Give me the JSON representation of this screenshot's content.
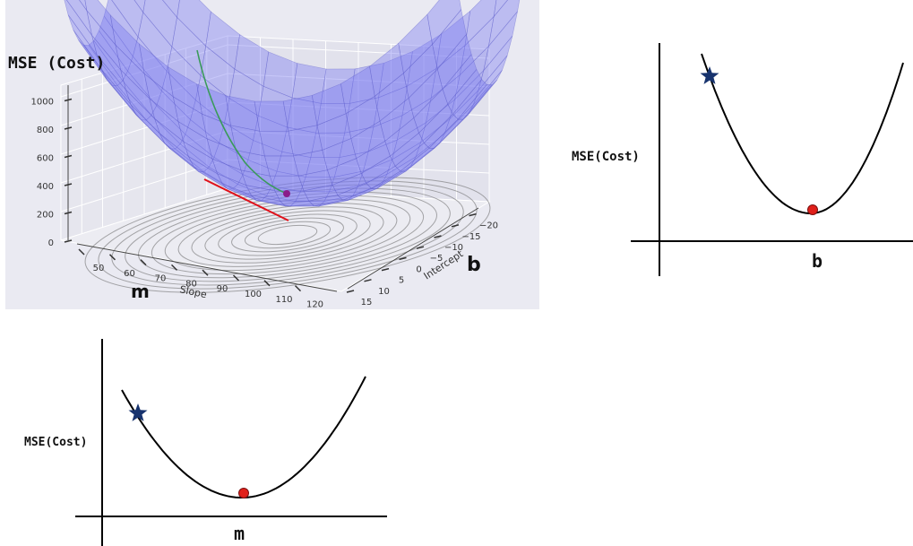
{
  "chart_data": [
    {
      "type": "surface3d",
      "title": "MSE (Cost)",
      "zlabel_ticks": [
        "0",
        "200",
        "400",
        "600",
        "800",
        "1000"
      ],
      "xlabel": "Slope",
      "x_ticks": [
        "50",
        "60",
        "70",
        "80",
        "90",
        "100",
        "110",
        "120"
      ],
      "ylabel": "Intercept",
      "y_ticks": [
        "15",
        "10",
        "5",
        "0",
        "−5",
        "−10",
        "−15",
        "−20"
      ],
      "x_param_label": "m",
      "y_param_label": "b",
      "colors": {
        "surface": "#7b7cf0",
        "path": "#3a9a5a",
        "minimum_marker": "#8a1c8a",
        "tangent": "#e0101a",
        "contour": "#666666"
      }
    },
    {
      "type": "line",
      "title": "",
      "ylabel": "MSE(Cost)",
      "xlabel": "b",
      "curve": "parabola",
      "start_marker": "star",
      "minimum_marker": "circle",
      "colors": {
        "curve": "#000000",
        "star": "#17336e",
        "minimum": "#e0201a"
      }
    },
    {
      "type": "line",
      "title": "",
      "ylabel": "MSE(Cost)",
      "xlabel": "m",
      "curve": "parabola",
      "start_marker": "star",
      "minimum_marker": "circle",
      "colors": {
        "curve": "#000000",
        "star": "#17336e",
        "minimum": "#e0201a"
      }
    }
  ]
}
